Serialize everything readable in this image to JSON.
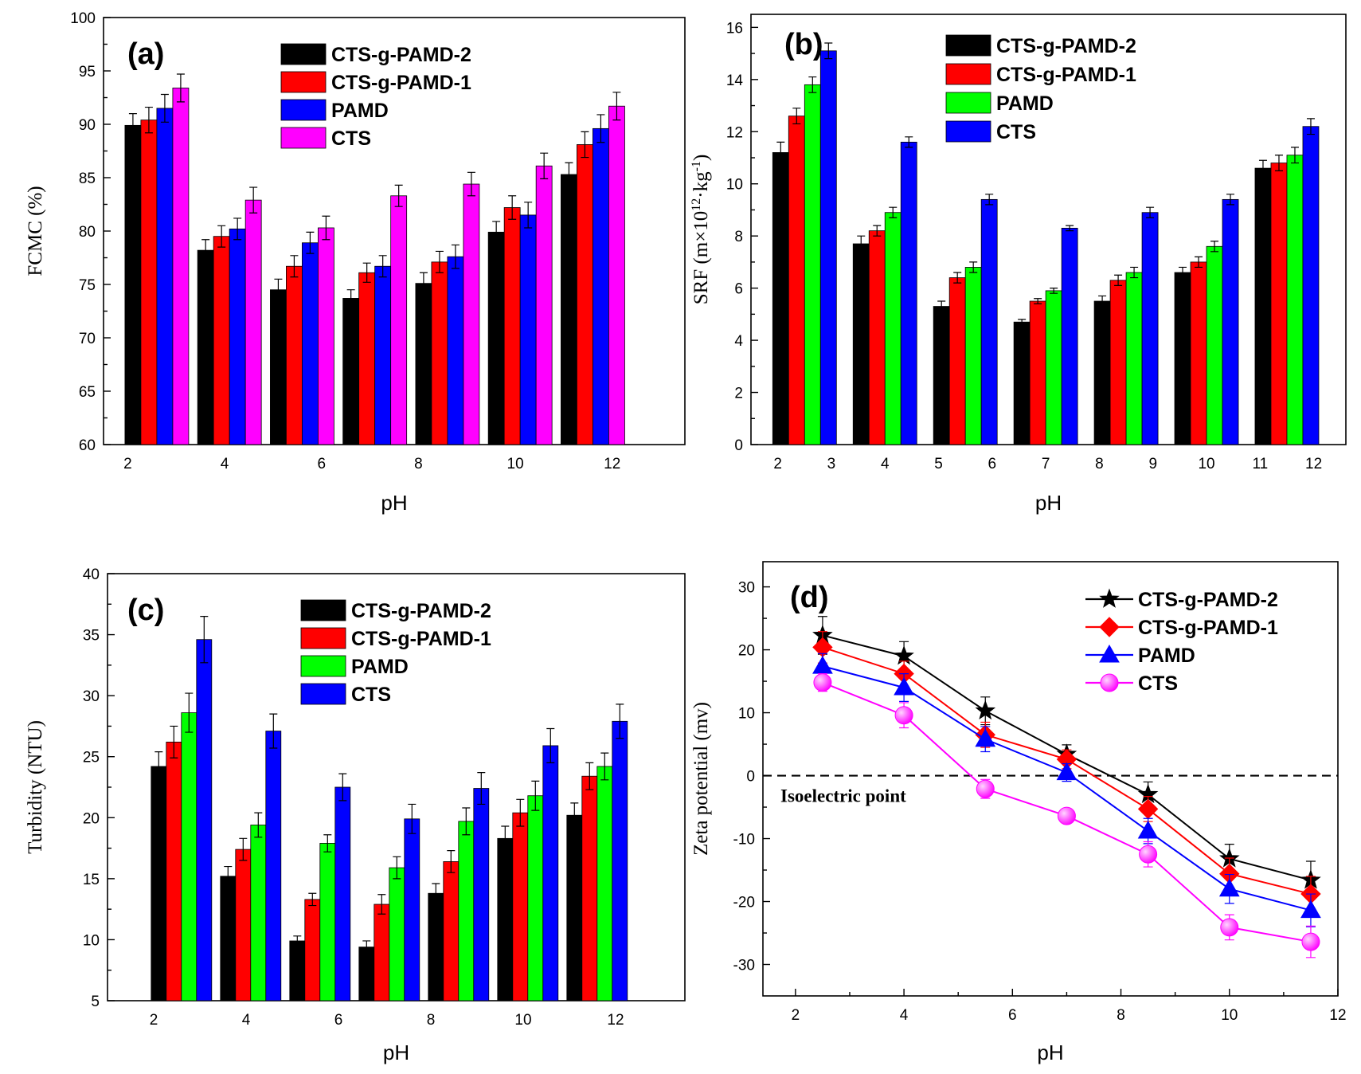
{
  "chart_data": [
    {
      "id": "a",
      "type": "bar",
      "panel_label": "(a)",
      "title": "",
      "xlabel": "pH",
      "ylabel": "FCMC (%)",
      "ylim": [
        60,
        100
      ],
      "yticks": [
        60,
        65,
        70,
        75,
        80,
        85,
        90,
        95,
        100
      ],
      "xlim": [
        1.5,
        13.5
      ],
      "xticks": [
        2,
        4,
        6,
        8,
        10,
        12
      ],
      "group_centers": [
        2.6,
        4.1,
        5.6,
        7.1,
        8.6,
        10.1,
        11.6
      ],
      "legend_position": "top-center",
      "series": [
        {
          "name": "CTS-g-PAMD-2",
          "color": "#000000",
          "values": [
            89.9,
            78.2,
            74.5,
            73.7,
            75.1,
            79.9,
            85.3
          ],
          "errors": [
            1.1,
            1.0,
            1.0,
            0.8,
            1.0,
            1.0,
            1.1
          ]
        },
        {
          "name": "CTS-g-PAMD-1",
          "color": "#ff0000",
          "values": [
            90.4,
            79.5,
            76.7,
            76.1,
            77.1,
            82.2,
            88.1
          ],
          "errors": [
            1.2,
            1.0,
            1.0,
            0.9,
            1.0,
            1.1,
            1.2
          ]
        },
        {
          "name": "PAMD",
          "color": "#0000ff",
          "values": [
            91.5,
            80.2,
            78.9,
            76.7,
            77.6,
            81.5,
            89.6
          ],
          "errors": [
            1.3,
            1.0,
            1.0,
            1.0,
            1.1,
            1.2,
            1.3
          ]
        },
        {
          "name": "CTS",
          "color": "#ff00ff",
          "values": [
            93.4,
            82.9,
            80.3,
            83.3,
            84.4,
            86.1,
            91.7
          ],
          "errors": [
            1.3,
            1.2,
            1.1,
            1.0,
            1.1,
            1.2,
            1.3
          ]
        }
      ]
    },
    {
      "id": "b",
      "type": "bar",
      "panel_label": "(b)",
      "title": "",
      "xlabel": "pH",
      "ylabel_main": "SRF (m×10",
      "ylabel_sup1": "12",
      "ylabel_mid": "·kg",
      "ylabel_sup2": "-1",
      "ylabel_end": ")",
      "ylim": [
        0,
        16.5
      ],
      "yticks": [
        0,
        2,
        4,
        6,
        8,
        10,
        12,
        14,
        16
      ],
      "xlim": [
        1.5,
        12.6
      ],
      "xticks": [
        2,
        3,
        4,
        5,
        6,
        7,
        8,
        9,
        10,
        11,
        12
      ],
      "group_centers": [
        2.5,
        4.0,
        5.5,
        7.0,
        8.5,
        10.0,
        11.5
      ],
      "legend_position": "top-center",
      "series": [
        {
          "name": "CTS-g-PAMD-2",
          "color": "#000000",
          "values": [
            11.2,
            7.7,
            5.3,
            4.7,
            5.5,
            6.6,
            10.6
          ],
          "errors": [
            0.4,
            0.3,
            0.2,
            0.1,
            0.2,
            0.2,
            0.3
          ]
        },
        {
          "name": "CTS-g-PAMD-1",
          "color": "#ff0000",
          "values": [
            12.6,
            8.2,
            6.4,
            5.5,
            6.3,
            7.0,
            10.8
          ],
          "errors": [
            0.3,
            0.2,
            0.2,
            0.1,
            0.2,
            0.2,
            0.3
          ]
        },
        {
          "name": "PAMD",
          "color": "#00ff00",
          "values": [
            13.8,
            8.9,
            6.8,
            5.9,
            6.6,
            7.6,
            11.1
          ],
          "errors": [
            0.3,
            0.2,
            0.2,
            0.1,
            0.2,
            0.2,
            0.3
          ]
        },
        {
          "name": "CTS",
          "color": "#0000ff",
          "values": [
            15.1,
            11.6,
            9.4,
            8.3,
            8.9,
            9.4,
            12.2
          ],
          "errors": [
            0.3,
            0.2,
            0.2,
            0.1,
            0.2,
            0.2,
            0.3
          ]
        }
      ]
    },
    {
      "id": "c",
      "type": "bar",
      "panel_label": "(c)",
      "title": "",
      "xlabel": "pH",
      "ylabel": "Turbidity (NTU)",
      "ylim": [
        5,
        40
      ],
      "yticks": [
        5,
        10,
        15,
        20,
        25,
        30,
        35,
        40
      ],
      "xlim": [
        1,
        13.5
      ],
      "xticks": [
        2,
        4,
        6,
        8,
        10,
        12
      ],
      "group_centers": [
        2.6,
        4.1,
        5.6,
        7.1,
        8.6,
        10.1,
        11.6
      ],
      "legend_position": "top-center",
      "series": [
        {
          "name": "CTS-g-PAMD-2",
          "color": "#000000",
          "values": [
            24.2,
            15.2,
            9.9,
            9.4,
            13.8,
            18.3,
            20.2
          ],
          "errors": [
            1.2,
            0.8,
            0.4,
            0.5,
            0.8,
            1.0,
            1.0
          ]
        },
        {
          "name": "CTS-g-PAMD-1",
          "color": "#ff0000",
          "values": [
            26.2,
            17.4,
            13.3,
            12.9,
            16.4,
            20.4,
            23.4
          ],
          "errors": [
            1.3,
            0.9,
            0.5,
            0.8,
            0.9,
            1.1,
            1.1
          ]
        },
        {
          "name": "PAMD",
          "color": "#00ff00",
          "values": [
            28.6,
            19.4,
            17.9,
            15.9,
            19.7,
            21.8,
            24.2
          ],
          "errors": [
            1.6,
            1.0,
            0.7,
            0.9,
            1.1,
            1.2,
            1.1
          ]
        },
        {
          "name": "CTS",
          "color": "#0000ff",
          "values": [
            34.6,
            27.1,
            22.5,
            19.9,
            22.4,
            25.9,
            27.9
          ],
          "errors": [
            1.9,
            1.4,
            1.1,
            1.2,
            1.3,
            1.4,
            1.4
          ]
        }
      ]
    },
    {
      "id": "d",
      "type": "line",
      "panel_label": "(d)",
      "title": "",
      "xlabel": "pH",
      "ylabel": "Zeta potential (mv)",
      "ylim": [
        -35,
        34
      ],
      "yticks": [
        -30,
        -20,
        -10,
        0,
        10,
        20,
        30
      ],
      "xlim": [
        1.4,
        12.0
      ],
      "xticks": [
        2,
        4,
        6,
        8,
        10,
        12
      ],
      "x": [
        2.5,
        4.0,
        5.5,
        7.0,
        8.5,
        10.0,
        11.5
      ],
      "reference_line": {
        "y": 0,
        "label": "Isoelectric point"
      },
      "legend_position": "top-right",
      "series": [
        {
          "name": "CTS-g-PAMD-2",
          "color": "#000000",
          "marker": "star",
          "values": [
            22.3,
            19.0,
            10.3,
            3.4,
            -3.0,
            -13.2,
            -16.6
          ],
          "errors": [
            3.0,
            2.3,
            2.2,
            1.5,
            2.0,
            2.3,
            3.0
          ]
        },
        {
          "name": "CTS-g-PAMD-1",
          "color": "#ff0000",
          "marker": "diamond",
          "values": [
            20.4,
            16.2,
            6.5,
            2.6,
            -5.3,
            -15.6,
            -18.8
          ],
          "errors": [
            2.5,
            2.0,
            2.0,
            1.5,
            2.0,
            2.5,
            2.8
          ]
        },
        {
          "name": "PAMD",
          "color": "#0000ff",
          "marker": "triangle",
          "values": [
            17.4,
            14.0,
            5.8,
            0.5,
            -8.8,
            -18.0,
            -21.4
          ],
          "errors": [
            2.0,
            2.2,
            2.0,
            1.4,
            2.0,
            2.3,
            2.6
          ]
        },
        {
          "name": "CTS",
          "color": "#ff00ff",
          "marker": "circle",
          "values": [
            14.8,
            9.6,
            -2.1,
            -6.4,
            -12.5,
            -24.1,
            -26.4
          ],
          "errors": [
            1.4,
            2.0,
            1.5,
            1.0,
            2.0,
            2.0,
            2.5
          ]
        }
      ]
    }
  ]
}
